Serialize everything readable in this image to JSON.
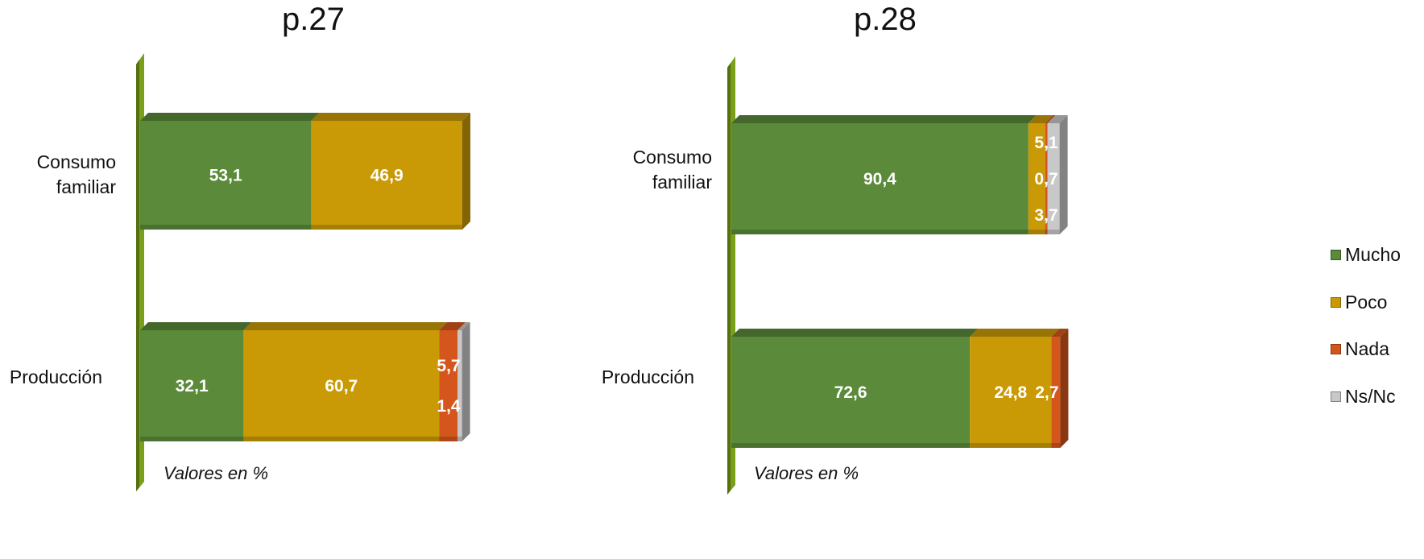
{
  "colors": {
    "Mucho": "#5a8a3a",
    "Poco": "#c99a06",
    "Nada": "#d4561c",
    "Ns/Nc": "#c8c8c8",
    "axis": "#7aa019"
  },
  "legend": {
    "items": [
      {
        "label": "Mucho",
        "icon": "square-swatch"
      },
      {
        "label": "Poco",
        "icon": "square-swatch"
      },
      {
        "label": "Nada",
        "icon": "square-swatch"
      },
      {
        "label": "Ns/Nc",
        "icon": "square-swatch"
      }
    ]
  },
  "chart_data": [
    {
      "type": "bar",
      "orientation": "horizontal",
      "stacked": true,
      "title": "p.27",
      "note": "Valores en %",
      "categories": [
        "Consumo\nfamiliar",
        "Producción"
      ],
      "series": [
        {
          "name": "Mucho",
          "values": [
            53.1,
            32.1
          ],
          "labels": [
            "53,1",
            "32,1"
          ]
        },
        {
          "name": "Poco",
          "values": [
            46.9,
            60.7
          ],
          "labels": [
            "46,9",
            "60,7"
          ]
        },
        {
          "name": "Nada",
          "values": [
            0,
            5.7
          ],
          "labels": [
            "",
            "5,7"
          ]
        },
        {
          "name": "Ns/Nc",
          "values": [
            0,
            1.4
          ],
          "labels": [
            "",
            "1,4"
          ]
        }
      ],
      "xlim": [
        0,
        100
      ],
      "grid": false,
      "legend": "right"
    },
    {
      "type": "bar",
      "orientation": "horizontal",
      "stacked": true,
      "title": "p.28",
      "note": "Valores en %",
      "categories": [
        "Consumo\nfamiliar",
        "Producción"
      ],
      "series": [
        {
          "name": "Mucho",
          "values": [
            90.4,
            72.6
          ],
          "labels": [
            "90,4",
            "72,6"
          ]
        },
        {
          "name": "Poco",
          "values": [
            5.1,
            24.8
          ],
          "labels": [
            "5,1",
            "24,8"
          ]
        },
        {
          "name": "Nada",
          "values": [
            0.7,
            2.7
          ],
          "labels": [
            "0,7",
            "2,7"
          ]
        },
        {
          "name": "Ns/Nc",
          "values": [
            3.7,
            0
          ],
          "labels": [
            "3,7",
            ""
          ]
        }
      ],
      "xlim": [
        0,
        100
      ],
      "grid": false,
      "legend": "right"
    }
  ]
}
